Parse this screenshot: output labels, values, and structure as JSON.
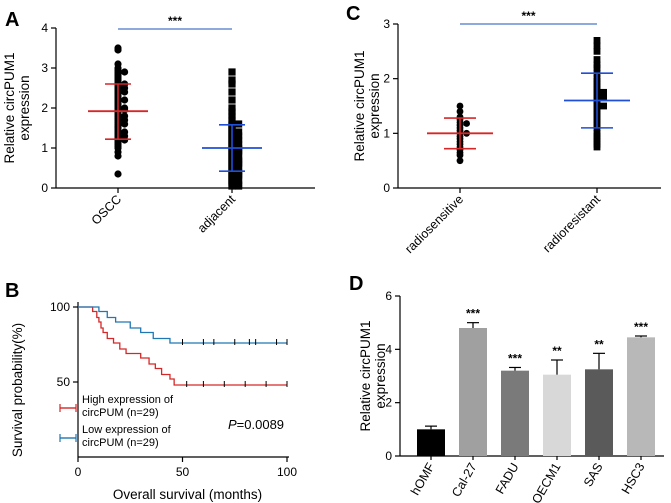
{
  "chart_data": [
    {
      "panel": "A",
      "type": "scatter",
      "ylabel_line1": "Relative circPUM1",
      "ylabel_line2": "expression",
      "ylim": [
        0,
        4
      ],
      "yticks": [
        "0",
        "1",
        "2",
        "3",
        "4"
      ],
      "categories": [
        "OSCC",
        "adjacent"
      ],
      "significance": "***",
      "series": [
        {
          "marker": "circle",
          "mean": 1.92,
          "sd_low": 1.22,
          "sd_high": 2.6,
          "values": [
            3.5,
            3.45,
            3.1,
            3.0,
            2.95,
            2.9,
            2.85,
            2.8,
            2.75,
            2.7,
            2.65,
            2.6,
            2.55,
            2.5,
            2.45,
            2.4,
            2.35,
            2.3,
            2.25,
            2.2,
            2.15,
            2.1,
            2.05,
            2.0,
            1.95,
            1.9,
            1.85,
            1.8,
            1.75,
            1.7,
            1.65,
            1.6,
            1.55,
            1.5,
            1.45,
            1.4,
            1.35,
            1.3,
            1.25,
            1.2,
            1.15,
            1.1,
            1.0,
            0.9,
            0.8,
            0.35,
            2.6,
            2.4,
            2.2,
            2.0,
            1.8,
            1.6,
            1.4,
            1.2,
            1.05,
            2.9,
            2.5,
            1.95,
            1.7,
            1.3
          ]
        },
        {
          "marker": "square",
          "mean": 1.0,
          "sd_low": 0.42,
          "sd_high": 1.58,
          "values": [
            2.9,
            2.7,
            2.6,
            2.4,
            2.2,
            2.0,
            1.9,
            1.8,
            1.7,
            1.6,
            1.55,
            1.5,
            1.45,
            1.4,
            1.35,
            1.3,
            1.25,
            1.2,
            1.15,
            1.1,
            1.05,
            1.0,
            0.95,
            0.9,
            0.85,
            0.8,
            0.75,
            0.7,
            0.65,
            0.6,
            0.55,
            0.5,
            0.45,
            0.4,
            0.35,
            0.3,
            0.25,
            0.2,
            0.15,
            0.1,
            0.05,
            1.2,
            1.0,
            0.8,
            0.6,
            0.4,
            0.2,
            1.4,
            1.1,
            0.9,
            0.7,
            0.5,
            0.3,
            0.1,
            1.3,
            0.95,
            0.65,
            0.35,
            1.6,
            0.05
          ]
        }
      ]
    },
    {
      "panel": "C",
      "type": "scatter",
      "ylabel_line1": "Relative circPUM1",
      "ylabel_line2": "expression",
      "ylim": [
        0,
        3
      ],
      "yticks": [
        "0",
        "1",
        "2",
        "3"
      ],
      "categories": [
        "radiosensitive",
        "radioresistant"
      ],
      "significance": "***",
      "series": [
        {
          "marker": "circle",
          "mean": 1.0,
          "sd_low": 0.72,
          "sd_high": 1.28,
          "values": [
            1.5,
            1.4,
            1.3,
            1.25,
            1.2,
            1.18,
            1.1,
            1.05,
            1.0,
            1.0,
            0.95,
            0.9,
            0.85,
            0.8,
            0.75,
            0.7,
            0.65,
            0.6,
            0.5,
            1.15
          ]
        },
        {
          "marker": "square",
          "mean": 1.6,
          "sd_low": 1.1,
          "sd_high": 2.1,
          "values": [
            2.7,
            2.6,
            2.5,
            2.35,
            2.2,
            2.1,
            2.0,
            1.95,
            1.9,
            1.85,
            1.8,
            1.75,
            1.7,
            1.65,
            1.6,
            1.55,
            1.5,
            1.45,
            1.4,
            1.35,
            1.3,
            1.25,
            1.2,
            1.1,
            1.0,
            0.95,
            0.9,
            0.85,
            0.8,
            2.25,
            1.75,
            1.5,
            1.15,
            1.65,
            0.75
          ]
        }
      ]
    },
    {
      "panel": "B",
      "type": "line",
      "ylabel": "Survival probability(%)",
      "xlabel": "Overall survival (months)",
      "xlim": [
        0,
        100
      ],
      "ylim": [
        0,
        100
      ],
      "xticks": [
        "0",
        "50",
        "100"
      ],
      "yticks": [
        "50",
        "100"
      ],
      "pvalue_italic": "P",
      "pvalue_rest": "=0.0089",
      "series": [
        {
          "legend_line1": "High expression of",
          "legend_line2": "circPUM (n=29)",
          "color": "#d62728",
          "steps": [
            [
              0,
              100
            ],
            [
              7,
              97
            ],
            [
              9,
              93
            ],
            [
              10,
              90
            ],
            [
              11,
              86
            ],
            [
              12,
              83
            ],
            [
              14,
              79
            ],
            [
              17,
              76
            ],
            [
              20,
              72
            ],
            [
              23,
              69
            ],
            [
              30,
              66
            ],
            [
              34,
              62
            ],
            [
              37,
              59
            ],
            [
              40,
              55
            ],
            [
              44,
              52
            ],
            [
              46,
              48
            ],
            [
              100,
              48
            ]
          ],
          "censor_x": [
            52,
            60,
            70,
            80,
            90,
            100
          ]
        },
        {
          "legend_line1": "Low expression of",
          "legend_line2": "circPUM (n=29)",
          "color": "#1f77b4",
          "steps": [
            [
              0,
              100
            ],
            [
              10,
              97
            ],
            [
              14,
              93
            ],
            [
              18,
              90
            ],
            [
              25,
              86
            ],
            [
              30,
              83
            ],
            [
              36,
              79
            ],
            [
              44,
              76
            ],
            [
              100,
              76
            ]
          ],
          "censor_x": [
            50,
            60,
            65,
            75,
            82,
            85,
            95,
            100
          ]
        }
      ]
    },
    {
      "panel": "D",
      "type": "bar",
      "ylabel_line1": "Relative circPUM1",
      "ylabel_line2": "expression",
      "ylim": [
        0,
        6
      ],
      "yticks": [
        "0",
        "2",
        "4",
        "6"
      ],
      "categories": [
        "hOMF",
        "Cal-27",
        "FADU",
        "OECM1",
        "SAS",
        "HSC3"
      ],
      "values": [
        1.0,
        4.8,
        3.2,
        3.05,
        3.25,
        4.45
      ],
      "errors": [
        0.12,
        0.2,
        0.12,
        0.55,
        0.6,
        0.05
      ],
      "significance": [
        "",
        "***",
        "***",
        "**",
        "**",
        "***"
      ],
      "colors": [
        "#000000",
        "#a0a0a0",
        "#7a7a7a",
        "#d8d8d8",
        "#5a5a5a",
        "#b8b8b8"
      ]
    }
  ]
}
